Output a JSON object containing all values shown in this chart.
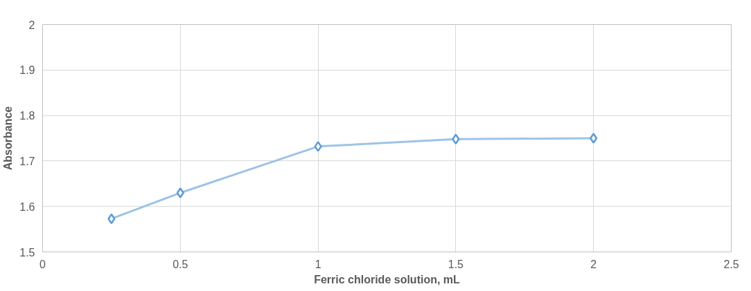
{
  "chart_data": {
    "type": "line",
    "xlabel": "Ferric chloride solution, mL",
    "ylabel": "Absorbance",
    "x": [
      0.25,
      0.5,
      1,
      1.5,
      2
    ],
    "series": [
      {
        "color": "#9dc3e6",
        "values": [
          1.573,
          1.63,
          1.732,
          1.748,
          1.75
        ]
      }
    ],
    "xlim": [
      0,
      2.5
    ],
    "xticks": [
      0,
      0.5,
      1,
      1.5,
      2,
      2.5
    ],
    "ylim": [
      1.5,
      2
    ],
    "yticks": [
      1.5,
      1.6,
      1.7,
      1.8,
      1.9,
      2
    ],
    "grid": true,
    "marker": "diamond",
    "line_style": "solid"
  }
}
